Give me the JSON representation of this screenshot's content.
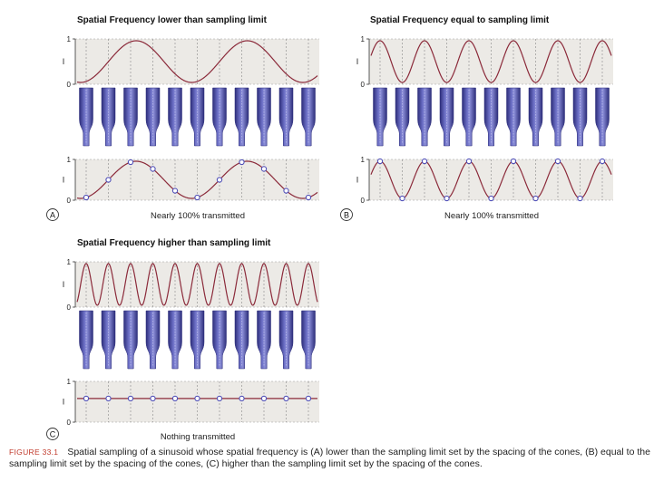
{
  "figure": {
    "label": "FIGURE 33.1",
    "caption": "Spatial sampling of a sinusoid whose spatial frequency is (A) lower than the sampling limit set by the spacing of the cones, (B) equal to the sampling limit set by the spacing of the cones, (C) higher than the sampling limit set by the spacing of the cones."
  },
  "panels": [
    {
      "letter": "A",
      "title": "Spatial Frequency lower than sampling limit",
      "result": "Nearly 100% transmitted",
      "cycles_per_cone": 0.2,
      "phase": 0.55,
      "sampled_constant": false
    },
    {
      "letter": "B",
      "title": "Spatial Frequency equal to sampling limit",
      "result": "Nearly 100% transmitted",
      "cycles_per_cone": 0.5,
      "phase": 0.0,
      "sampled_constant": false
    },
    {
      "letter": "C",
      "title": "Spatial Frequency higher than sampling limit",
      "result": "Nothing transmitted",
      "cycles_per_cone": 1.0,
      "phase": 0.0,
      "sampled_constant": true
    }
  ],
  "axis": {
    "label": "I",
    "tick_top": "1",
    "tick_bottom": "0"
  },
  "cones_per_panel": 11,
  "colors": {
    "band_bg": "#eceae6",
    "wave": "#8b2a3a",
    "cone_fill": "#5c5fb0",
    "cone_dark": "#2c2d7a",
    "sample_point": "#5050b8",
    "dashed": "#888888",
    "caption_label": "#c0392b"
  }
}
